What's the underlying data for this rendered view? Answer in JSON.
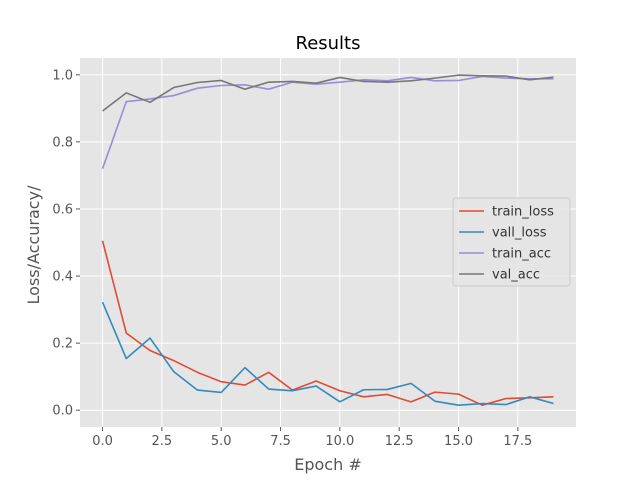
{
  "chart_data": {
    "type": "line",
    "title": "Results",
    "xlabel": "Epoch #",
    "ylabel": "Loss/Accuracy/",
    "xlim": [
      -0.95,
      19.95
    ],
    "ylim": [
      -0.05,
      1.05
    ],
    "xticks": [
      0,
      2.5,
      5,
      7.5,
      10,
      12.5,
      15,
      17.5
    ],
    "xtick_labels": [
      "0.0",
      "2.5",
      "5.0",
      "7.5",
      "10.0",
      "12.5",
      "15.0",
      "17.5"
    ],
    "yticks": [
      0,
      0.2,
      0.4,
      0.6,
      0.8,
      1.0
    ],
    "ytick_labels": [
      "0.0",
      "0.2",
      "0.4",
      "0.6",
      "0.8",
      "1.0"
    ],
    "grid": true,
    "legend_position": "center-right",
    "x": [
      0,
      1,
      2,
      3,
      4,
      5,
      6,
      7,
      8,
      9,
      10,
      11,
      12,
      13,
      14,
      15,
      16,
      17,
      18,
      19
    ],
    "series": [
      {
        "name": "train_loss",
        "color": "#E24A33",
        "values": [
          0.505,
          0.23,
          0.178,
          0.148,
          0.113,
          0.085,
          0.075,
          0.113,
          0.06,
          0.087,
          0.058,
          0.04,
          0.047,
          0.025,
          0.054,
          0.048,
          0.015,
          0.035,
          0.037,
          0.04
        ]
      },
      {
        "name": "vall_loss",
        "color": "#348ABD",
        "values": [
          0.322,
          0.154,
          0.215,
          0.115,
          0.06,
          0.053,
          0.127,
          0.063,
          0.058,
          0.072,
          0.025,
          0.061,
          0.062,
          0.08,
          0.027,
          0.015,
          0.02,
          0.017,
          0.04,
          0.02
        ]
      },
      {
        "name": "train_acc",
        "color": "#988ED5",
        "values": [
          0.72,
          0.92,
          0.928,
          0.938,
          0.96,
          0.968,
          0.97,
          0.957,
          0.978,
          0.972,
          0.978,
          0.985,
          0.982,
          0.992,
          0.982,
          0.983,
          0.995,
          0.99,
          0.988,
          0.988
        ]
      },
      {
        "name": "val_acc",
        "color": "#777777",
        "values": [
          0.892,
          0.946,
          0.918,
          0.962,
          0.977,
          0.983,
          0.957,
          0.978,
          0.98,
          0.975,
          0.992,
          0.98,
          0.978,
          0.982,
          0.99,
          0.999,
          0.997,
          0.996,
          0.985,
          0.993
        ]
      }
    ]
  }
}
